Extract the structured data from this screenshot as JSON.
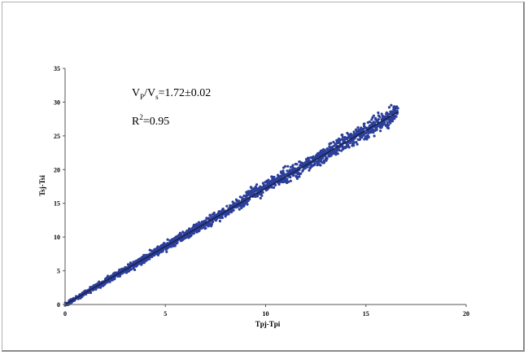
{
  "chart_data": {
    "type": "scatter",
    "title": "",
    "xlabel": "Tpj-Tpi",
    "ylabel": "Tsj-Tsi",
    "xlim": [
      0,
      20
    ],
    "ylim": [
      0,
      35
    ],
    "xticks": [
      0,
      5,
      10,
      15,
      20
    ],
    "yticks": [
      0,
      5,
      10,
      15,
      20,
      25,
      30,
      35
    ],
    "grid": false,
    "legend": "none",
    "point_color": "#2b3f9a",
    "line_color": "#1a1a3a",
    "fit_line": {
      "slope": 1.72,
      "intercept": 0,
      "x": [
        0,
        16.6
      ]
    },
    "annotations": {
      "ratio_lhs_v1": "V",
      "ratio_lhs_sub1": "P",
      "ratio_lhs_slash": "/V",
      "ratio_lhs_sub2": "s",
      "ratio_rhs": "=1.72±0.02",
      "r2_lhs": "R",
      "r2_sup": "2",
      "r2_rhs": "=0.95"
    },
    "series": [
      {
        "name": "",
        "x_range": [
          0,
          16.6
        ],
        "slope": 1.72,
        "spread_y": [
          0.3,
          1.2
        ],
        "density": "dense"
      }
    ]
  }
}
